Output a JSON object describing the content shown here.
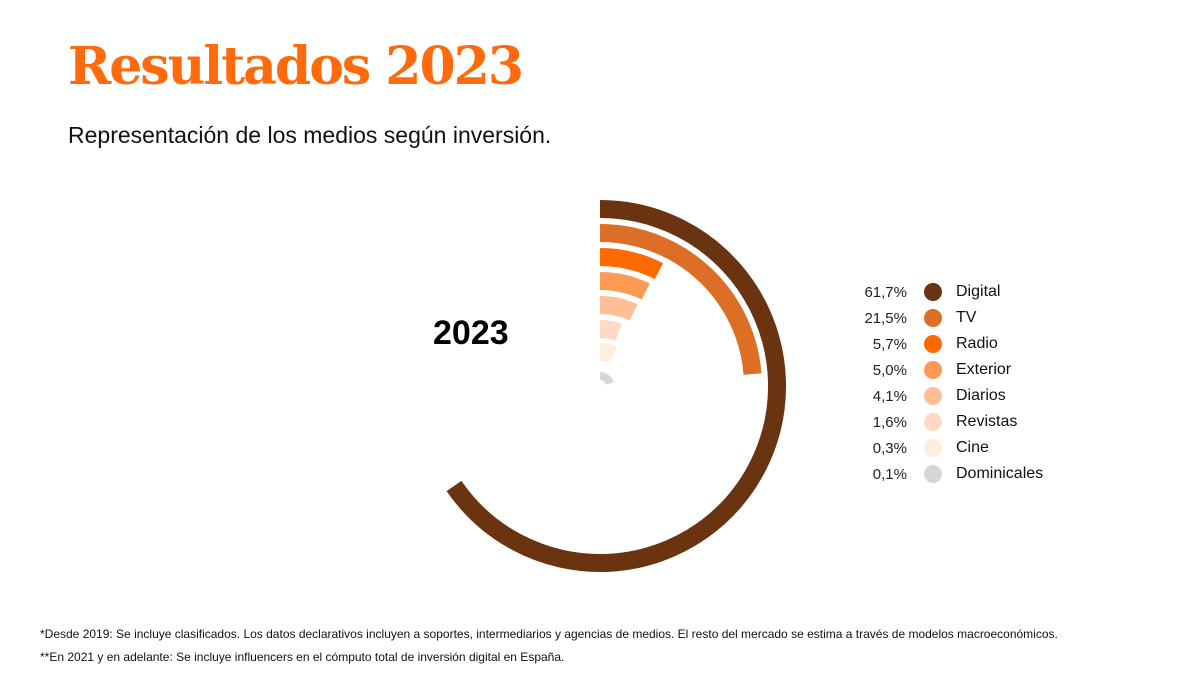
{
  "title": "Resultados 2023",
  "subtitle": "Representación de los medios según inversión.",
  "chart_data": {
    "type": "radial-bar",
    "center_label": "2023",
    "categories": [
      "Digital",
      "TV",
      "Radio",
      "Exterior",
      "Diarios",
      "Revistas",
      "Cine",
      "Dominicales"
    ],
    "values": [
      61.7,
      21.5,
      5.7,
      5.0,
      4.1,
      1.6,
      0.3,
      0.1
    ],
    "value_labels": [
      "61,7%",
      "21,5%",
      "5,7%",
      "5,0%",
      "4,1%",
      "1,6%",
      "0,3%",
      "0,1%"
    ],
    "colors": [
      "#6b3410",
      "#dc6e26",
      "#ff6a00",
      "#ff9a55",
      "#ffbe95",
      "#ffd9c3",
      "#ffeedd",
      "#d6d6d6"
    ],
    "legend_position": "right"
  },
  "footnotes": [
    "*Desde 2019: Se incluye clasificados. Los datos declarativos incluyen a soportes, intermediarios y agencias de medios. El resto del mercado se estima a través de modelos macroeconómicos.",
    "**En 2021 y en adelante: Se incluye influencers en el cómputo total de inversión digital en España."
  ]
}
